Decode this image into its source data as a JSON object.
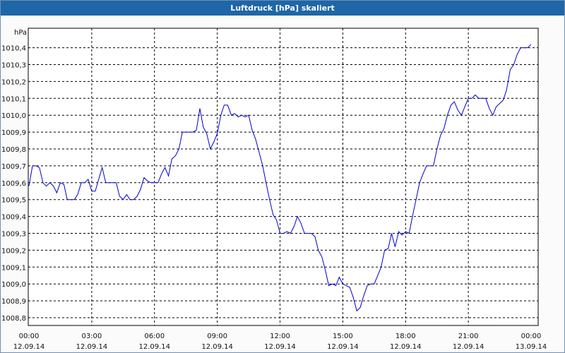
{
  "window": {
    "title": "Luftdruck [hPa] skaliert"
  },
  "chart_data": {
    "type": "line",
    "title": "Luftdruck [hPa] skaliert",
    "ylabel": "hPa",
    "xlabel": "",
    "ylim": [
      1008.77,
      1010.43
    ],
    "xlim": [
      0,
      24
    ],
    "grid": true,
    "line_color": "#0000cc",
    "grid_color": "#000000",
    "y_ticks": [
      "1008,8",
      "1008,9",
      "1009,0",
      "1009,1",
      "1009,2",
      "1009,3",
      "1009,4",
      "1009,5",
      "1009,6",
      "1009,7",
      "1009,8",
      "1009,9",
      "1010,0",
      "1010,1",
      "1010,2",
      "1010,3",
      "1010,4"
    ],
    "x_ticks": [
      {
        "time": "00:00",
        "date": "12.09.14"
      },
      {
        "time": "03:00",
        "date": "12.09.14"
      },
      {
        "time": "06:00",
        "date": "12.09.14"
      },
      {
        "time": "09:00",
        "date": "12.09.14"
      },
      {
        "time": "12:00",
        "date": "12.09.14"
      },
      {
        "time": "15:00",
        "date": "12.09.14"
      },
      {
        "time": "18:00",
        "date": "12.09.14"
      },
      {
        "time": "21:00",
        "date": "12.09.14"
      },
      {
        "time": "00:00",
        "date": "13.09.14"
      }
    ],
    "series": [
      {
        "x": [
          0,
          0.17,
          0.33,
          0.5,
          0.67,
          0.83,
          1.0,
          1.17,
          1.33,
          1.5,
          1.67,
          1.83,
          2.0,
          2.17,
          2.33,
          2.5,
          2.67,
          2.83,
          3.0,
          3.17,
          3.33,
          3.5,
          3.67,
          3.83,
          4.0,
          4.17,
          4.33,
          4.5,
          4.67,
          4.83,
          5.0,
          5.17,
          5.33,
          5.5,
          5.67,
          5.83,
          6.0,
          6.17,
          6.33,
          6.5,
          6.67,
          6.83,
          7.0,
          7.17,
          7.33,
          7.5,
          7.67,
          7.83,
          8.0,
          8.17,
          8.33,
          8.5,
          8.67,
          8.83,
          9.0,
          9.17,
          9.33,
          9.5,
          9.67,
          9.83,
          10.0,
          10.17,
          10.33,
          10.5,
          10.67,
          10.83,
          11.0,
          11.17,
          11.33,
          11.5,
          11.67,
          11.83,
          12.0,
          12.17,
          12.33,
          12.5,
          12.67,
          12.83,
          13.0,
          13.17,
          13.33,
          13.5,
          13.67,
          13.83,
          14.0,
          14.17,
          14.33,
          14.5,
          14.67,
          14.83,
          15.0,
          15.17,
          15.33,
          15.5,
          15.67,
          15.83,
          16.0,
          16.17,
          16.33,
          16.5,
          16.67,
          16.83,
          17.0,
          17.17,
          17.33,
          17.5,
          17.67,
          17.83,
          18.0,
          18.17,
          18.33,
          18.5,
          18.67,
          18.83,
          19.0,
          19.17,
          19.33,
          19.5,
          19.67,
          19.83,
          20.0,
          20.17,
          20.33,
          20.5,
          20.67,
          20.83,
          21.0,
          21.17,
          21.33,
          21.5,
          21.67,
          21.83,
          22.0,
          22.17,
          22.33,
          22.5,
          22.67,
          22.83,
          23.0,
          23.17,
          23.33,
          23.5,
          23.67,
          23.83,
          24.0
        ],
        "values": [
          1009.58,
          1009.7,
          1009.7,
          1009.69,
          1009.6,
          1009.58,
          1009.6,
          1009.58,
          1009.54,
          1009.6,
          1009.59,
          1009.5,
          1009.5,
          1009.5,
          1009.53,
          1009.6,
          1009.6,
          1009.62,
          1009.55,
          1009.55,
          1009.62,
          1009.69,
          1009.6,
          1009.6,
          1009.6,
          1009.6,
          1009.52,
          1009.5,
          1009.53,
          1009.5,
          1009.5,
          1009.52,
          1009.56,
          1009.63,
          1009.61,
          1009.6,
          1009.6,
          1009.6,
          1009.65,
          1009.69,
          1009.64,
          1009.74,
          1009.76,
          1009.8,
          1009.9,
          1009.9,
          1009.9,
          1009.9,
          1009.91,
          1010.04,
          1009.93,
          1009.89,
          1009.8,
          1009.84,
          1009.89,
          1010.0,
          1010.06,
          1010.06,
          1010.0,
          1010.01,
          1009.99,
          1010.0,
          1009.99,
          1010.0,
          1009.91,
          1009.86,
          1009.78,
          1009.7,
          1009.6,
          1009.5,
          1009.41,
          1009.38,
          1009.3,
          1009.3,
          1009.31,
          1009.3,
          1009.34,
          1009.4,
          1009.36,
          1009.3,
          1009.3,
          1009.3,
          1009.28,
          1009.2,
          1009.16,
          1009.08,
          1008.99,
          1009.0,
          1008.99,
          1009.04,
          1009.0,
          1008.99,
          1008.98,
          1008.92,
          1008.84,
          1008.86,
          1008.93,
          1008.99,
          1009.0,
          1009.0,
          1009.05,
          1009.1,
          1009.2,
          1009.21,
          1009.3,
          1009.22,
          1009.31,
          1009.29,
          1009.31,
          1009.3,
          1009.4,
          1009.5,
          1009.6,
          1009.65,
          1009.7,
          1009.7,
          1009.7,
          1009.8,
          1009.88,
          1009.92,
          1010.0,
          1010.06,
          1010.08,
          1010.03,
          1010.0,
          1010.05,
          1010.1,
          1010.1,
          1010.12,
          1010.1,
          1010.1,
          1010.1,
          1010.04,
          1010.0,
          1010.05,
          1010.07,
          1010.09,
          1010.15,
          1010.27,
          1010.3,
          1010.36,
          1010.4,
          1010.4,
          1010.4,
          1010.42
        ]
      }
    ]
  }
}
